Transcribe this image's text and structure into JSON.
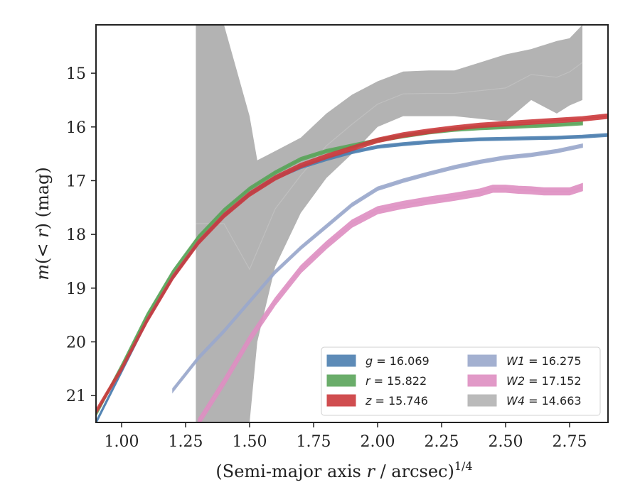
{
  "chart_data": {
    "type": "line",
    "title": "",
    "xlabel_main": "(Semi-major axis ",
    "xlabel_var": "r",
    "xlabel_tail": " / arcsec)",
    "xlabel_exp": "1/4",
    "ylabel_main": "m",
    "ylabel_inner": "(< ",
    "ylabel_var": "r",
    "ylabel_tail": ") (mag)",
    "xlim": [
      0.9,
      2.9
    ],
    "ylim": [
      21.5,
      14.1
    ],
    "y_inverted": true,
    "xticks": [
      "1.00",
      "1.25",
      "1.50",
      "1.75",
      "2.00",
      "2.25",
      "2.50",
      "2.75"
    ],
    "xtick_values": [
      1.0,
      1.25,
      1.5,
      1.75,
      2.0,
      2.25,
      2.5,
      2.75
    ],
    "yticks": [
      "15",
      "16",
      "17",
      "18",
      "19",
      "20",
      "21"
    ],
    "ytick_values": [
      15,
      16,
      17,
      18,
      19,
      20,
      21
    ],
    "grid": false,
    "legend_position": "lower-right",
    "series": [
      {
        "band": "g",
        "value": "16.069",
        "color": "#4c7fb0",
        "model_color": "#4c7fb0",
        "x": [
          0.9,
          1.0,
          1.1,
          1.2,
          1.3,
          1.4,
          1.5,
          1.6,
          1.7,
          1.8,
          1.9,
          2.0,
          2.1,
          2.2,
          2.3,
          2.4,
          2.5,
          2.6,
          2.7,
          2.8,
          2.9
        ],
        "y": [
          21.5,
          20.55,
          19.6,
          18.8,
          18.15,
          17.65,
          17.25,
          16.95,
          16.75,
          16.6,
          16.47,
          16.37,
          16.32,
          16.28,
          16.25,
          16.23,
          16.22,
          16.21,
          16.2,
          16.18,
          16.15
        ],
        "width": 0.05
      },
      {
        "band": "r",
        "value": "15.822",
        "color": "#5aa55a",
        "model_color": "#5aa55a",
        "x": [
          0.9,
          1.0,
          1.1,
          1.2,
          1.3,
          1.4,
          1.5,
          1.6,
          1.7,
          1.8,
          1.9,
          2.0,
          2.1,
          2.2,
          2.3,
          2.4,
          2.5,
          2.6,
          2.7,
          2.8
        ],
        "y": [
          21.35,
          20.45,
          19.5,
          18.7,
          18.05,
          17.55,
          17.15,
          16.85,
          16.6,
          16.45,
          16.35,
          16.25,
          16.17,
          16.1,
          16.05,
          16.02,
          16.0,
          15.98,
          15.96,
          15.93
        ],
        "width": 0.06
      },
      {
        "band": "z",
        "value": "15.746",
        "color": "#cc3a3d",
        "model_color": "#e06060",
        "x": [
          0.9,
          1.0,
          1.1,
          1.2,
          1.3,
          1.4,
          1.5,
          1.6,
          1.7,
          1.8,
          1.9,
          2.0,
          2.1,
          2.2,
          2.3,
          2.4,
          2.5,
          2.6,
          2.7,
          2.8,
          2.9
        ],
        "y": [
          21.3,
          20.5,
          19.6,
          18.8,
          18.15,
          17.65,
          17.25,
          16.95,
          16.72,
          16.55,
          16.4,
          16.25,
          16.15,
          16.08,
          16.02,
          15.97,
          15.94,
          15.91,
          15.88,
          15.85,
          15.8
        ],
        "width": 0.08
      },
      {
        "band": "W1",
        "value": "16.275",
        "color": "#9aa8cc",
        "model_color": "#b9c3da",
        "x": [
          1.2,
          1.3,
          1.4,
          1.5,
          1.6,
          1.7,
          1.8,
          1.9,
          2.0,
          2.1,
          2.2,
          2.3,
          2.4,
          2.5,
          2.6,
          2.7,
          2.8
        ],
        "y": [
          20.9,
          20.3,
          19.8,
          19.25,
          18.7,
          18.25,
          17.85,
          17.45,
          17.15,
          17.0,
          16.87,
          16.75,
          16.65,
          16.57,
          16.52,
          16.45,
          16.35
        ],
        "width": 0.06
      },
      {
        "band": "W2",
        "value": "17.152",
        "color": "#de8fc2",
        "model_color": "#ebb3d4",
        "x": [
          1.3,
          1.4,
          1.5,
          1.6,
          1.7,
          1.8,
          1.9,
          2.0,
          2.1,
          2.2,
          2.3,
          2.4,
          2.45,
          2.5,
          2.55,
          2.6,
          2.65,
          2.7,
          2.75,
          2.8
        ],
        "y": [
          21.5,
          20.75,
          19.95,
          19.25,
          18.65,
          18.2,
          17.8,
          17.55,
          17.45,
          17.37,
          17.3,
          17.22,
          17.15,
          17.15,
          17.17,
          17.18,
          17.2,
          17.2,
          17.2,
          17.12
        ],
        "width": 0.13
      },
      {
        "band": "W4",
        "value": "14.663",
        "color": "#b3b3b3",
        "model_color": "#c8c8c8",
        "x": [
          1.29,
          1.4,
          1.5,
          1.53,
          1.6,
          1.7,
          1.8,
          1.9,
          2.0,
          2.1,
          2.2,
          2.3,
          2.4,
          2.5,
          2.6,
          2.7,
          2.75,
          2.8
        ],
        "y_upper": [
          14.1,
          14.1,
          15.8,
          16.62,
          16.45,
          16.2,
          15.75,
          15.4,
          15.15,
          14.97,
          14.95,
          14.95,
          14.8,
          14.65,
          14.55,
          14.4,
          14.35,
          14.1
        ],
        "y_lower": [
          21.5,
          21.5,
          21.5,
          20.0,
          18.6,
          17.6,
          16.95,
          16.5,
          16.0,
          15.8,
          15.8,
          15.8,
          15.85,
          15.9,
          15.5,
          15.75,
          15.6,
          15.5
        ]
      }
    ]
  }
}
